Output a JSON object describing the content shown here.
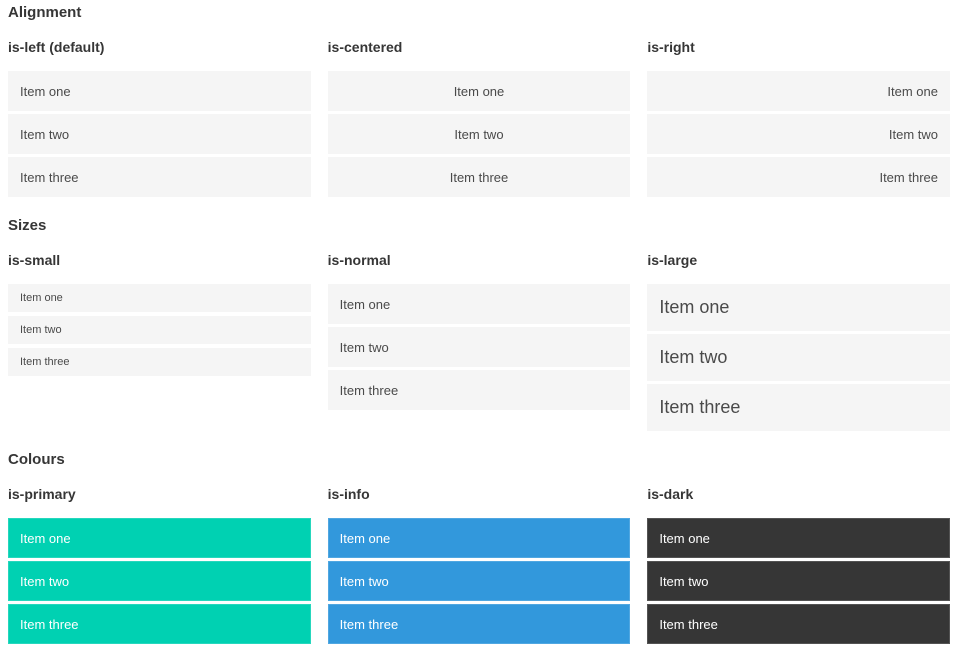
{
  "colors": {
    "primary": "#00d1b2",
    "info": "#3298dc",
    "dark": "#363636",
    "item_bg": "#f5f5f5",
    "text": "#4a4a4a",
    "heading": "#363636"
  },
  "page": {
    "sections": [
      {
        "title": "Alignment",
        "columns": [
          {
            "label": "is-left (default)",
            "items": [
              "Item one",
              "Item two",
              "Item three"
            ]
          },
          {
            "label": "is-centered",
            "items": [
              "Item one",
              "Item two",
              "Item three"
            ]
          },
          {
            "label": "is-right",
            "items": [
              "Item one",
              "Item two",
              "Item three"
            ]
          }
        ]
      },
      {
        "title": "Sizes",
        "columns": [
          {
            "label": "is-small",
            "items": [
              "Item one",
              "Item two",
              "Item three"
            ]
          },
          {
            "label": "is-normal",
            "items": [
              "Item one",
              "Item two",
              "Item three"
            ]
          },
          {
            "label": "is-large",
            "items": [
              "Item one",
              "Item two",
              "Item three"
            ]
          }
        ]
      },
      {
        "title": "Colours",
        "columns": [
          {
            "label": "is-primary",
            "items": [
              "Item one",
              "Item two",
              "Item three"
            ]
          },
          {
            "label": "is-info",
            "items": [
              "Item one",
              "Item two",
              "Item three"
            ]
          },
          {
            "label": "is-dark",
            "items": [
              "Item one",
              "Item two",
              "Item three"
            ]
          }
        ]
      }
    ]
  }
}
